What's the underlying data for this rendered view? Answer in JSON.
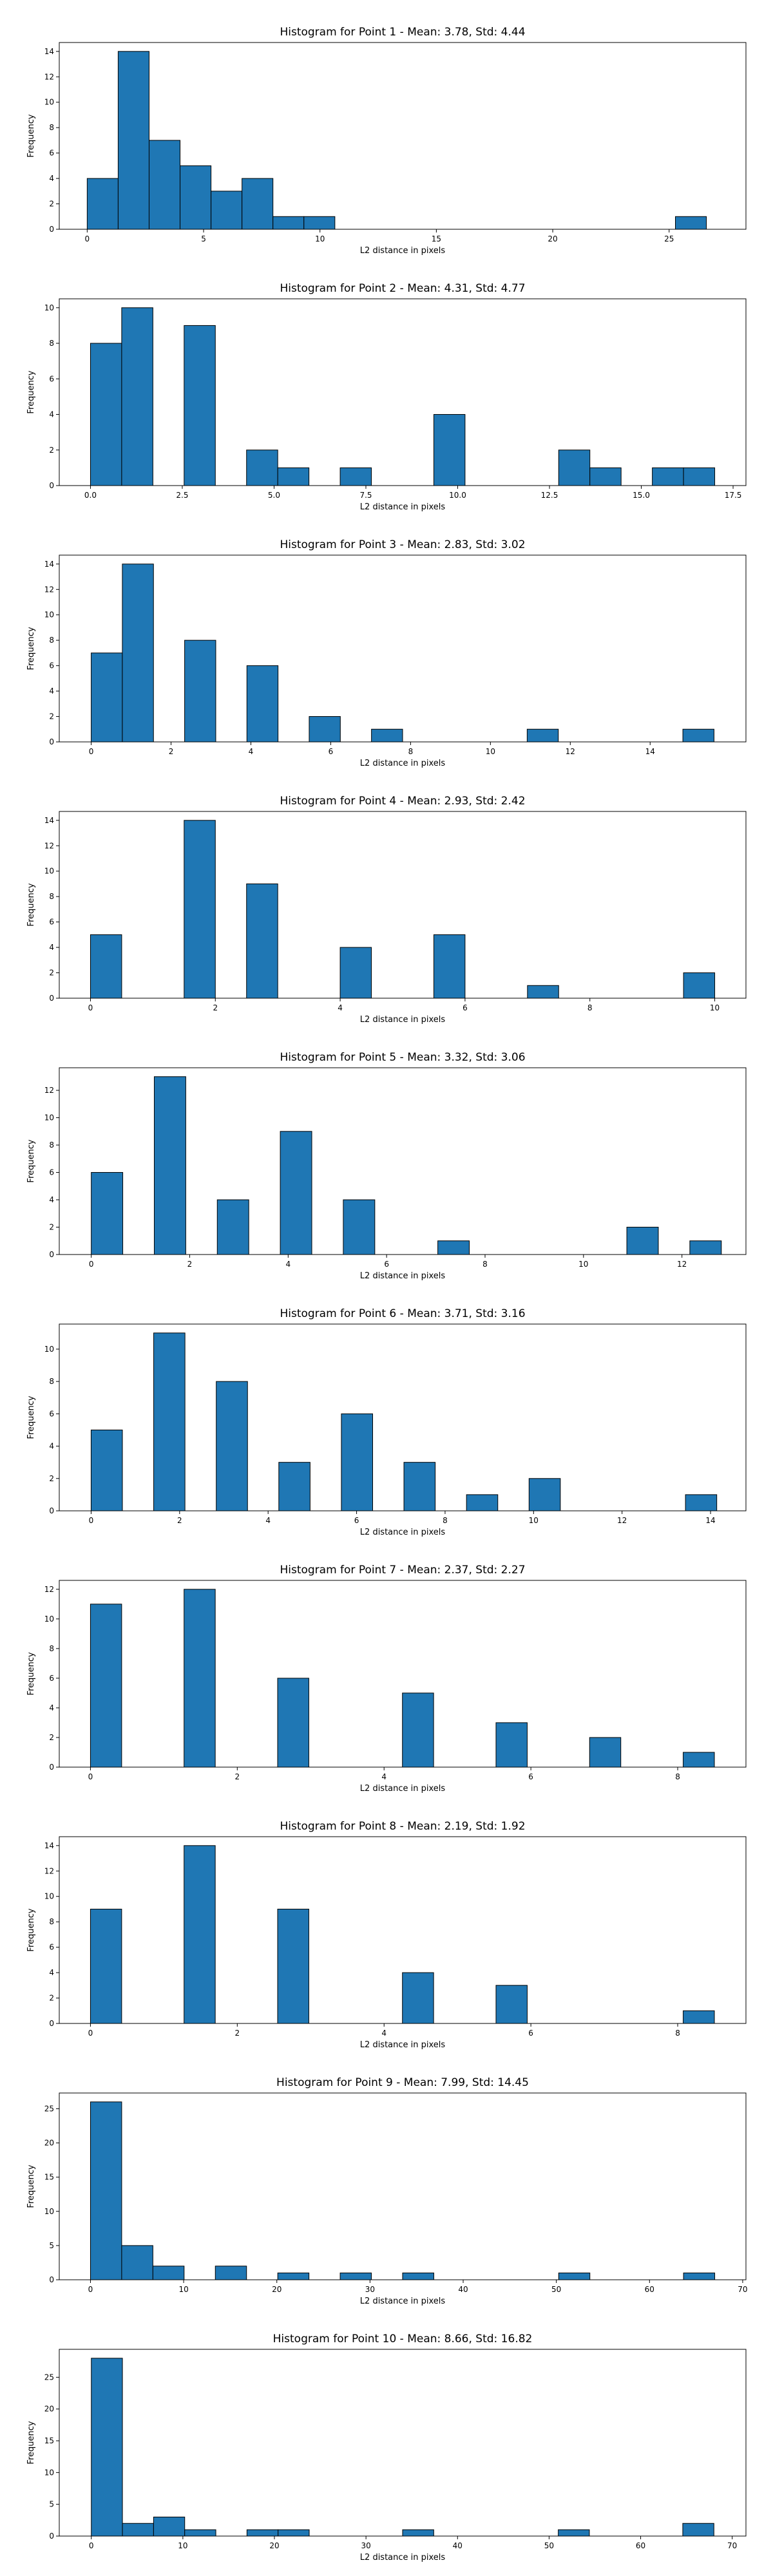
{
  "chart_data": [
    {
      "type": "bar",
      "title": "Histogram for Point 1 - Mean: 3.78, Std: 4.44",
      "xlabel": "L2 distance in pixels",
      "ylabel": "Frequency",
      "xlim": [
        -1.2,
        28.3
      ],
      "ylim": [
        0,
        14.7
      ],
      "xticks": [
        0,
        5,
        10,
        15,
        20,
        25
      ],
      "xtick_labels": [
        "0",
        "5",
        "10",
        "15",
        "20",
        "25"
      ],
      "yticks": [
        0,
        2,
        4,
        6,
        8,
        10,
        12,
        14
      ],
      "ytick_labels": [
        "0",
        "2",
        "4",
        "6",
        "8",
        "10",
        "12",
        "14"
      ],
      "bin_edges": [
        0,
        1.33,
        2.66,
        3.99,
        5.32,
        6.65,
        7.98,
        9.31,
        10.64,
        11.97,
        13.3,
        14.63,
        15.96,
        17.29,
        18.62,
        19.95,
        21.28,
        22.61,
        23.94,
        25.27,
        26.6
      ],
      "counts": [
        4,
        14,
        7,
        5,
        3,
        4,
        1,
        1,
        0,
        0,
        0,
        0,
        0,
        0,
        0,
        0,
        0,
        0,
        0,
        1
      ]
    },
    {
      "type": "bar",
      "title": "Histogram for Point 2 - Mean: 4.31, Std: 4.77",
      "xlabel": "L2 distance in pixels",
      "ylabel": "Frequency",
      "xlim": [
        -0.85,
        17.85
      ],
      "ylim": [
        0,
        10.5
      ],
      "xticks": [
        0,
        2.5,
        5,
        7.5,
        10,
        12.5,
        15,
        17.5
      ],
      "xtick_labels": [
        "0.0",
        "2.5",
        "5.0",
        "7.5",
        "10.0",
        "12.5",
        "15.0",
        "17.5"
      ],
      "yticks": [
        0,
        2,
        4,
        6,
        8,
        10
      ],
      "ytick_labels": [
        "0",
        "2",
        "4",
        "6",
        "8",
        "10"
      ],
      "bin_edges": [
        0,
        0.85,
        1.7,
        2.55,
        3.4,
        4.25,
        5.1,
        5.95,
        6.8,
        7.65,
        8.5,
        9.35,
        10.2,
        11.05,
        11.9,
        12.75,
        13.6,
        14.45,
        15.3,
        16.15,
        17.0
      ],
      "counts": [
        8,
        10,
        0,
        9,
        0,
        2,
        1,
        0,
        1,
        0,
        0,
        4,
        0,
        0,
        0,
        2,
        1,
        0,
        1,
        1
      ]
    },
    {
      "type": "bar",
      "title": "Histogram for Point 3 - Mean: 2.83, Std: 3.02",
      "xlabel": "L2 distance in pixels",
      "ylabel": "Frequency",
      "xlim": [
        -0.8,
        16.4
      ],
      "ylim": [
        0,
        14.7
      ],
      "xticks": [
        0,
        2,
        4,
        6,
        8,
        10,
        12,
        14
      ],
      "xtick_labels": [
        "0",
        "2",
        "4",
        "6",
        "8",
        "10",
        "12",
        "14"
      ],
      "yticks": [
        0,
        2,
        4,
        6,
        8,
        10,
        12,
        14
      ],
      "ytick_labels": [
        "0",
        "2",
        "4",
        "6",
        "8",
        "10",
        "12",
        "14"
      ],
      "bin_edges": [
        0,
        0.78,
        1.56,
        2.34,
        3.12,
        3.9,
        4.68,
        5.46,
        6.24,
        7.02,
        7.8,
        8.58,
        9.36,
        10.14,
        10.92,
        11.7,
        12.48,
        13.26,
        14.04,
        14.82,
        15.6
      ],
      "counts": [
        7,
        14,
        0,
        8,
        0,
        6,
        0,
        2,
        0,
        1,
        0,
        0,
        0,
        0,
        1,
        0,
        0,
        0,
        0,
        1
      ]
    },
    {
      "type": "bar",
      "title": "Histogram for Point 4 - Mean: 2.93, Std: 2.42",
      "xlabel": "L2 distance in pixels",
      "ylabel": "Frequency",
      "xlim": [
        -0.5,
        10.5
      ],
      "ylim": [
        0,
        14.7
      ],
      "xticks": [
        0,
        2,
        4,
        6,
        8,
        10
      ],
      "xtick_labels": [
        "0",
        "2",
        "4",
        "6",
        "8",
        "10"
      ],
      "yticks": [
        0,
        2,
        4,
        6,
        8,
        10,
        12,
        14
      ],
      "ytick_labels": [
        "0",
        "2",
        "4",
        "6",
        "8",
        "10",
        "12",
        "14"
      ],
      "bin_edges": [
        0,
        0.5,
        1,
        1.5,
        2,
        2.5,
        3,
        3.5,
        4,
        4.5,
        5,
        5.5,
        6,
        6.5,
        7,
        7.5,
        8,
        8.5,
        9,
        9.5,
        10
      ],
      "counts": [
        5,
        0,
        0,
        14,
        0,
        9,
        0,
        0,
        4,
        0,
        0,
        5,
        0,
        0,
        1,
        0,
        0,
        0,
        0,
        2
      ]
    },
    {
      "type": "bar",
      "title": "Histogram for Point 5 - Mean: 3.32, Std: 3.06",
      "xlabel": "L2 distance in pixels",
      "ylabel": "Frequency",
      "xlim": [
        -0.65,
        13.3
      ],
      "ylim": [
        0,
        13.65
      ],
      "xticks": [
        0,
        2,
        4,
        6,
        8,
        10,
        12
      ],
      "xtick_labels": [
        "0",
        "2",
        "4",
        "6",
        "8",
        "10",
        "12"
      ],
      "yticks": [
        0,
        2,
        4,
        6,
        8,
        10,
        12
      ],
      "ytick_labels": [
        "0",
        "2",
        "4",
        "6",
        "8",
        "10",
        "12"
      ],
      "bin_edges": [
        0,
        0.64,
        1.28,
        1.92,
        2.56,
        3.2,
        3.84,
        4.48,
        5.12,
        5.76,
        6.4,
        7.04,
        7.68,
        8.32,
        8.96,
        9.6,
        10.24,
        10.88,
        11.52,
        12.16,
        12.8
      ],
      "counts": [
        6,
        0,
        13,
        0,
        4,
        0,
        9,
        0,
        4,
        0,
        0,
        1,
        0,
        0,
        0,
        0,
        0,
        2,
        0,
        1
      ]
    },
    {
      "type": "bar",
      "title": "Histogram for Point 6 - Mean: 3.71, Std: 3.16",
      "xlabel": "L2 distance in pixels",
      "ylabel": "Frequency",
      "xlim": [
        -0.72,
        14.8
      ],
      "ylim": [
        0,
        11.55
      ],
      "xticks": [
        0,
        2,
        4,
        6,
        8,
        10,
        12,
        14
      ],
      "xtick_labels": [
        "0",
        "2",
        "4",
        "6",
        "8",
        "10",
        "12",
        "14"
      ],
      "yticks": [
        0,
        2,
        4,
        6,
        8,
        10
      ],
      "ytick_labels": [
        "0",
        "2",
        "4",
        "6",
        "8",
        "10"
      ],
      "bin_edges": [
        0,
        0.707,
        1.414,
        2.121,
        2.828,
        3.535,
        4.242,
        4.949,
        5.656,
        6.363,
        7.07,
        7.777,
        8.484,
        9.191,
        9.898,
        10.605,
        11.312,
        12.019,
        12.726,
        13.433,
        14.14
      ],
      "counts": [
        5,
        0,
        11,
        0,
        8,
        0,
        3,
        0,
        6,
        0,
        3,
        0,
        1,
        0,
        2,
        0,
        0,
        0,
        0,
        1
      ]
    },
    {
      "type": "bar",
      "title": "Histogram for Point 7 - Mean: 2.37, Std: 2.27",
      "xlabel": "L2 distance in pixels",
      "ylabel": "Frequency",
      "xlim": [
        -0.425,
        8.93
      ],
      "ylim": [
        0,
        12.6
      ],
      "xticks": [
        0,
        2,
        4,
        6,
        8
      ],
      "xtick_labels": [
        "0",
        "2",
        "4",
        "6",
        "8"
      ],
      "yticks": [
        0,
        2,
        4,
        6,
        8,
        10,
        12
      ],
      "ytick_labels": [
        "0",
        "2",
        "4",
        "6",
        "8",
        "10",
        "12"
      ],
      "bin_edges": [
        0,
        0.425,
        0.85,
        1.275,
        1.7,
        2.125,
        2.55,
        2.975,
        3.4,
        3.825,
        4.25,
        4.675,
        5.1,
        5.525,
        5.95,
        6.375,
        6.8,
        7.225,
        7.65,
        8.075,
        8.5
      ],
      "counts": [
        11,
        0,
        0,
        12,
        0,
        0,
        6,
        0,
        0,
        0,
        5,
        0,
        0,
        3,
        0,
        0,
        2,
        0,
        0,
        1
      ]
    },
    {
      "type": "bar",
      "title": "Histogram for Point 8 - Mean: 2.19, Std: 1.92",
      "xlabel": "L2 distance in pixels",
      "ylabel": "Frequency",
      "xlim": [
        -0.425,
        8.93
      ],
      "ylim": [
        0,
        14.7
      ],
      "xticks": [
        0,
        2,
        4,
        6,
        8
      ],
      "xtick_labels": [
        "0",
        "2",
        "4",
        "6",
        "8"
      ],
      "yticks": [
        0,
        2,
        4,
        6,
        8,
        10,
        12,
        14
      ],
      "ytick_labels": [
        "0",
        "2",
        "4",
        "6",
        "8",
        "10",
        "12",
        "14"
      ],
      "bin_edges": [
        0,
        0.425,
        0.85,
        1.275,
        1.7,
        2.125,
        2.55,
        2.975,
        3.4,
        3.825,
        4.25,
        4.675,
        5.1,
        5.525,
        5.95,
        6.375,
        6.8,
        7.225,
        7.65,
        8.075,
        8.5
      ],
      "counts": [
        9,
        0,
        0,
        14,
        0,
        0,
        9,
        0,
        0,
        0,
        4,
        0,
        0,
        3,
        0,
        0,
        0,
        0,
        0,
        1
      ]
    },
    {
      "type": "bar",
      "title": "Histogram for Point 9 - Mean: 7.99, Std: 14.45",
      "xlabel": "L2 distance in pixels",
      "ylabel": "Frequency",
      "xlim": [
        -3.35,
        70.35
      ],
      "ylim": [
        0,
        27.3
      ],
      "xticks": [
        0,
        10,
        20,
        30,
        40,
        50,
        60,
        70
      ],
      "xtick_labels": [
        "0",
        "10",
        "20",
        "30",
        "40",
        "50",
        "60",
        "70"
      ],
      "yticks": [
        0,
        5,
        10,
        15,
        20,
        25
      ],
      "ytick_labels": [
        "0",
        "5",
        "10",
        "15",
        "20",
        "25"
      ],
      "bin_edges": [
        0,
        3.35,
        6.7,
        10.05,
        13.4,
        16.75,
        20.1,
        23.45,
        26.8,
        30.15,
        33.5,
        36.85,
        40.2,
        43.55,
        46.9,
        50.25,
        53.6,
        56.95,
        60.3,
        63.65,
        67.0
      ],
      "counts": [
        26,
        5,
        2,
        0,
        2,
        0,
        1,
        0,
        1,
        0,
        1,
        0,
        0,
        0,
        0,
        1,
        0,
        0,
        0,
        1
      ]
    },
    {
      "type": "bar",
      "title": "Histogram for Point 10 - Mean: 8.66, Std: 16.82",
      "xlabel": "L2 distance in pixels",
      "ylabel": "Frequency",
      "xlim": [
        -3.5,
        71.5
      ],
      "ylim": [
        0,
        29.4
      ],
      "xticks": [
        0,
        10,
        20,
        30,
        40,
        50,
        60,
        70
      ],
      "xtick_labels": [
        "0",
        "10",
        "20",
        "30",
        "40",
        "50",
        "60",
        "70"
      ],
      "yticks": [
        0,
        5,
        10,
        15,
        20,
        25
      ],
      "ytick_labels": [
        "0",
        "5",
        "10",
        "15",
        "20",
        "25"
      ],
      "bin_edges": [
        0,
        3.4,
        6.8,
        10.2,
        13.6,
        17.0,
        20.4,
        23.8,
        27.2,
        30.6,
        34.0,
        37.4,
        40.8,
        44.2,
        47.6,
        51.0,
        54.4,
        57.8,
        61.2,
        64.6,
        68.0
      ],
      "counts": [
        28,
        2,
        3,
        1,
        0,
        1,
        1,
        0,
        0,
        0,
        1,
        0,
        0,
        0,
        0,
        1,
        0,
        0,
        0,
        2
      ]
    }
  ]
}
